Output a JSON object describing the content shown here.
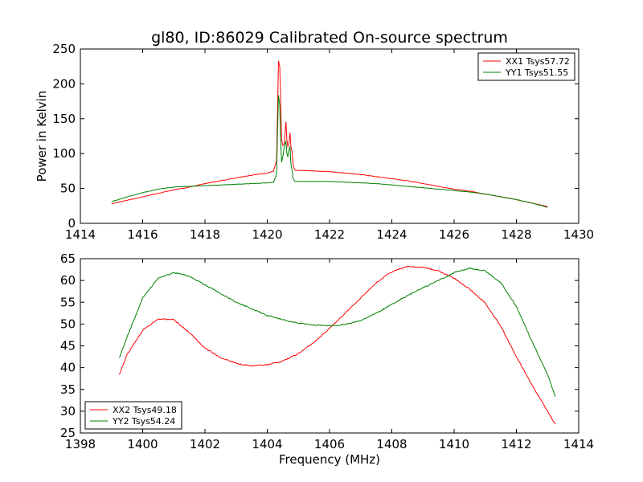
{
  "title": "gl80, ID:86029 Calibrated On-source spectrum",
  "colors": {
    "xx": "#ff0000",
    "yy": "#008000",
    "axis": "#000000"
  },
  "chart_data": [
    {
      "type": "line",
      "ylabel": "Power in Kelvin",
      "xlim": [
        1414,
        1430
      ],
      "ylim": [
        0,
        250
      ],
      "xticks": [
        1414,
        1416,
        1418,
        1420,
        1422,
        1424,
        1426,
        1428,
        1430
      ],
      "yticks": [
        0,
        50,
        100,
        150,
        200,
        250
      ],
      "legend_position": "top-right",
      "series": [
        {
          "name": "XX1 Tsys57.72",
          "color": "#ff0000",
          "x": [
            1415.0,
            1415.5,
            1416.0,
            1416.5,
            1417.0,
            1417.5,
            1418.0,
            1418.5,
            1419.0,
            1419.5,
            1420.0,
            1420.2,
            1420.3,
            1420.33,
            1420.36,
            1420.4,
            1420.43,
            1420.46,
            1420.5,
            1420.55,
            1420.6,
            1420.63,
            1420.66,
            1420.7,
            1420.73,
            1420.76,
            1420.8,
            1420.83,
            1420.87,
            1420.9,
            1421.0,
            1421.5,
            1422.0,
            1422.5,
            1423.0,
            1423.5,
            1424.0,
            1424.5,
            1425.0,
            1425.5,
            1426.0,
            1426.5,
            1427.0,
            1427.5,
            1428.0,
            1428.5,
            1429.0
          ],
          "y": [
            28,
            33,
            38,
            43,
            48,
            52,
            57,
            61,
            65,
            69,
            72,
            75,
            90,
            160,
            233,
            225,
            180,
            120,
            112,
            115,
            146,
            120,
            110,
            115,
            130,
            110,
            102,
            85,
            78,
            76,
            76,
            75,
            74,
            72,
            70,
            67,
            64,
            61,
            57,
            53,
            49,
            46,
            42,
            38,
            34,
            29,
            24
          ]
        },
        {
          "name": "YY1 Tsys51.55",
          "color": "#008000",
          "x": [
            1415.0,
            1415.5,
            1416.0,
            1416.5,
            1417.0,
            1417.5,
            1418.0,
            1418.5,
            1419.0,
            1419.5,
            1420.0,
            1420.2,
            1420.3,
            1420.33,
            1420.36,
            1420.4,
            1420.43,
            1420.46,
            1420.5,
            1420.55,
            1420.6,
            1420.63,
            1420.66,
            1420.7,
            1420.73,
            1420.76,
            1420.8,
            1420.83,
            1420.87,
            1420.9,
            1421.0,
            1421.5,
            1422.0,
            1422.5,
            1423.0,
            1423.5,
            1424.0,
            1424.5,
            1425.0,
            1425.5,
            1426.0,
            1426.5,
            1427.0,
            1427.5,
            1428.0,
            1428.5,
            1429.0
          ],
          "y": [
            31,
            38,
            44,
            49,
            52,
            53,
            54,
            55,
            56,
            57,
            58,
            59,
            70,
            130,
            184,
            170,
            120,
            88,
            95,
            110,
            118,
            100,
            95,
            105,
            110,
            85,
            75,
            65,
            61,
            60,
            60,
            60,
            60,
            59,
            58,
            57,
            55,
            53,
            51,
            49,
            47,
            45,
            42,
            38,
            34,
            29,
            23
          ]
        }
      ]
    },
    {
      "type": "line",
      "xlabel": "Frequency (MHz)",
      "xlim": [
        1398,
        1414
      ],
      "ylim": [
        25,
        65
      ],
      "xticks": [
        1398,
        1400,
        1402,
        1404,
        1406,
        1408,
        1410,
        1412,
        1414
      ],
      "yticks": [
        25,
        30,
        35,
        40,
        45,
        50,
        55,
        60,
        65
      ],
      "legend_position": "bottom-left",
      "series": [
        {
          "name": "XX2 Tsys49.18",
          "color": "#ff0000",
          "x": [
            1399.25,
            1399.5,
            1400.0,
            1400.5,
            1401.0,
            1401.5,
            1402.0,
            1402.5,
            1403.0,
            1403.5,
            1404.0,
            1404.5,
            1405.0,
            1405.5,
            1406.0,
            1406.5,
            1407.0,
            1407.5,
            1408.0,
            1408.5,
            1409.0,
            1409.5,
            1410.0,
            1410.5,
            1411.0,
            1411.5,
            1412.0,
            1412.5,
            1413.0,
            1413.25
          ],
          "y": [
            38.3,
            43,
            48.5,
            51.2,
            51,
            48,
            44.5,
            42.3,
            41,
            40.4,
            40.6,
            41.5,
            43.2,
            45.8,
            49,
            52.5,
            56,
            59.5,
            62,
            63.2,
            63,
            62.2,
            60.5,
            58,
            54.8,
            49.5,
            42.5,
            36,
            30,
            27
          ]
        },
        {
          "name": "YY2 Tsys54.24",
          "color": "#008000",
          "x": [
            1399.25,
            1399.5,
            1400.0,
            1400.5,
            1401.0,
            1401.5,
            1402.0,
            1402.5,
            1403.0,
            1403.5,
            1404.0,
            1404.5,
            1405.0,
            1405.5,
            1406.0,
            1406.5,
            1407.0,
            1407.5,
            1408.0,
            1408.5,
            1409.0,
            1409.5,
            1410.0,
            1410.5,
            1411.0,
            1411.5,
            1412.0,
            1412.5,
            1413.0,
            1413.25
          ],
          "y": [
            42.2,
            47,
            56,
            60.5,
            61.8,
            61,
            59,
            57,
            55,
            53.5,
            52,
            51,
            50.2,
            49.8,
            49.6,
            49.9,
            50.8,
            52.5,
            54.5,
            56.5,
            58.3,
            60,
            61.8,
            62.8,
            62.2,
            59.5,
            54,
            46,
            38.5,
            33.3
          ]
        }
      ]
    }
  ]
}
